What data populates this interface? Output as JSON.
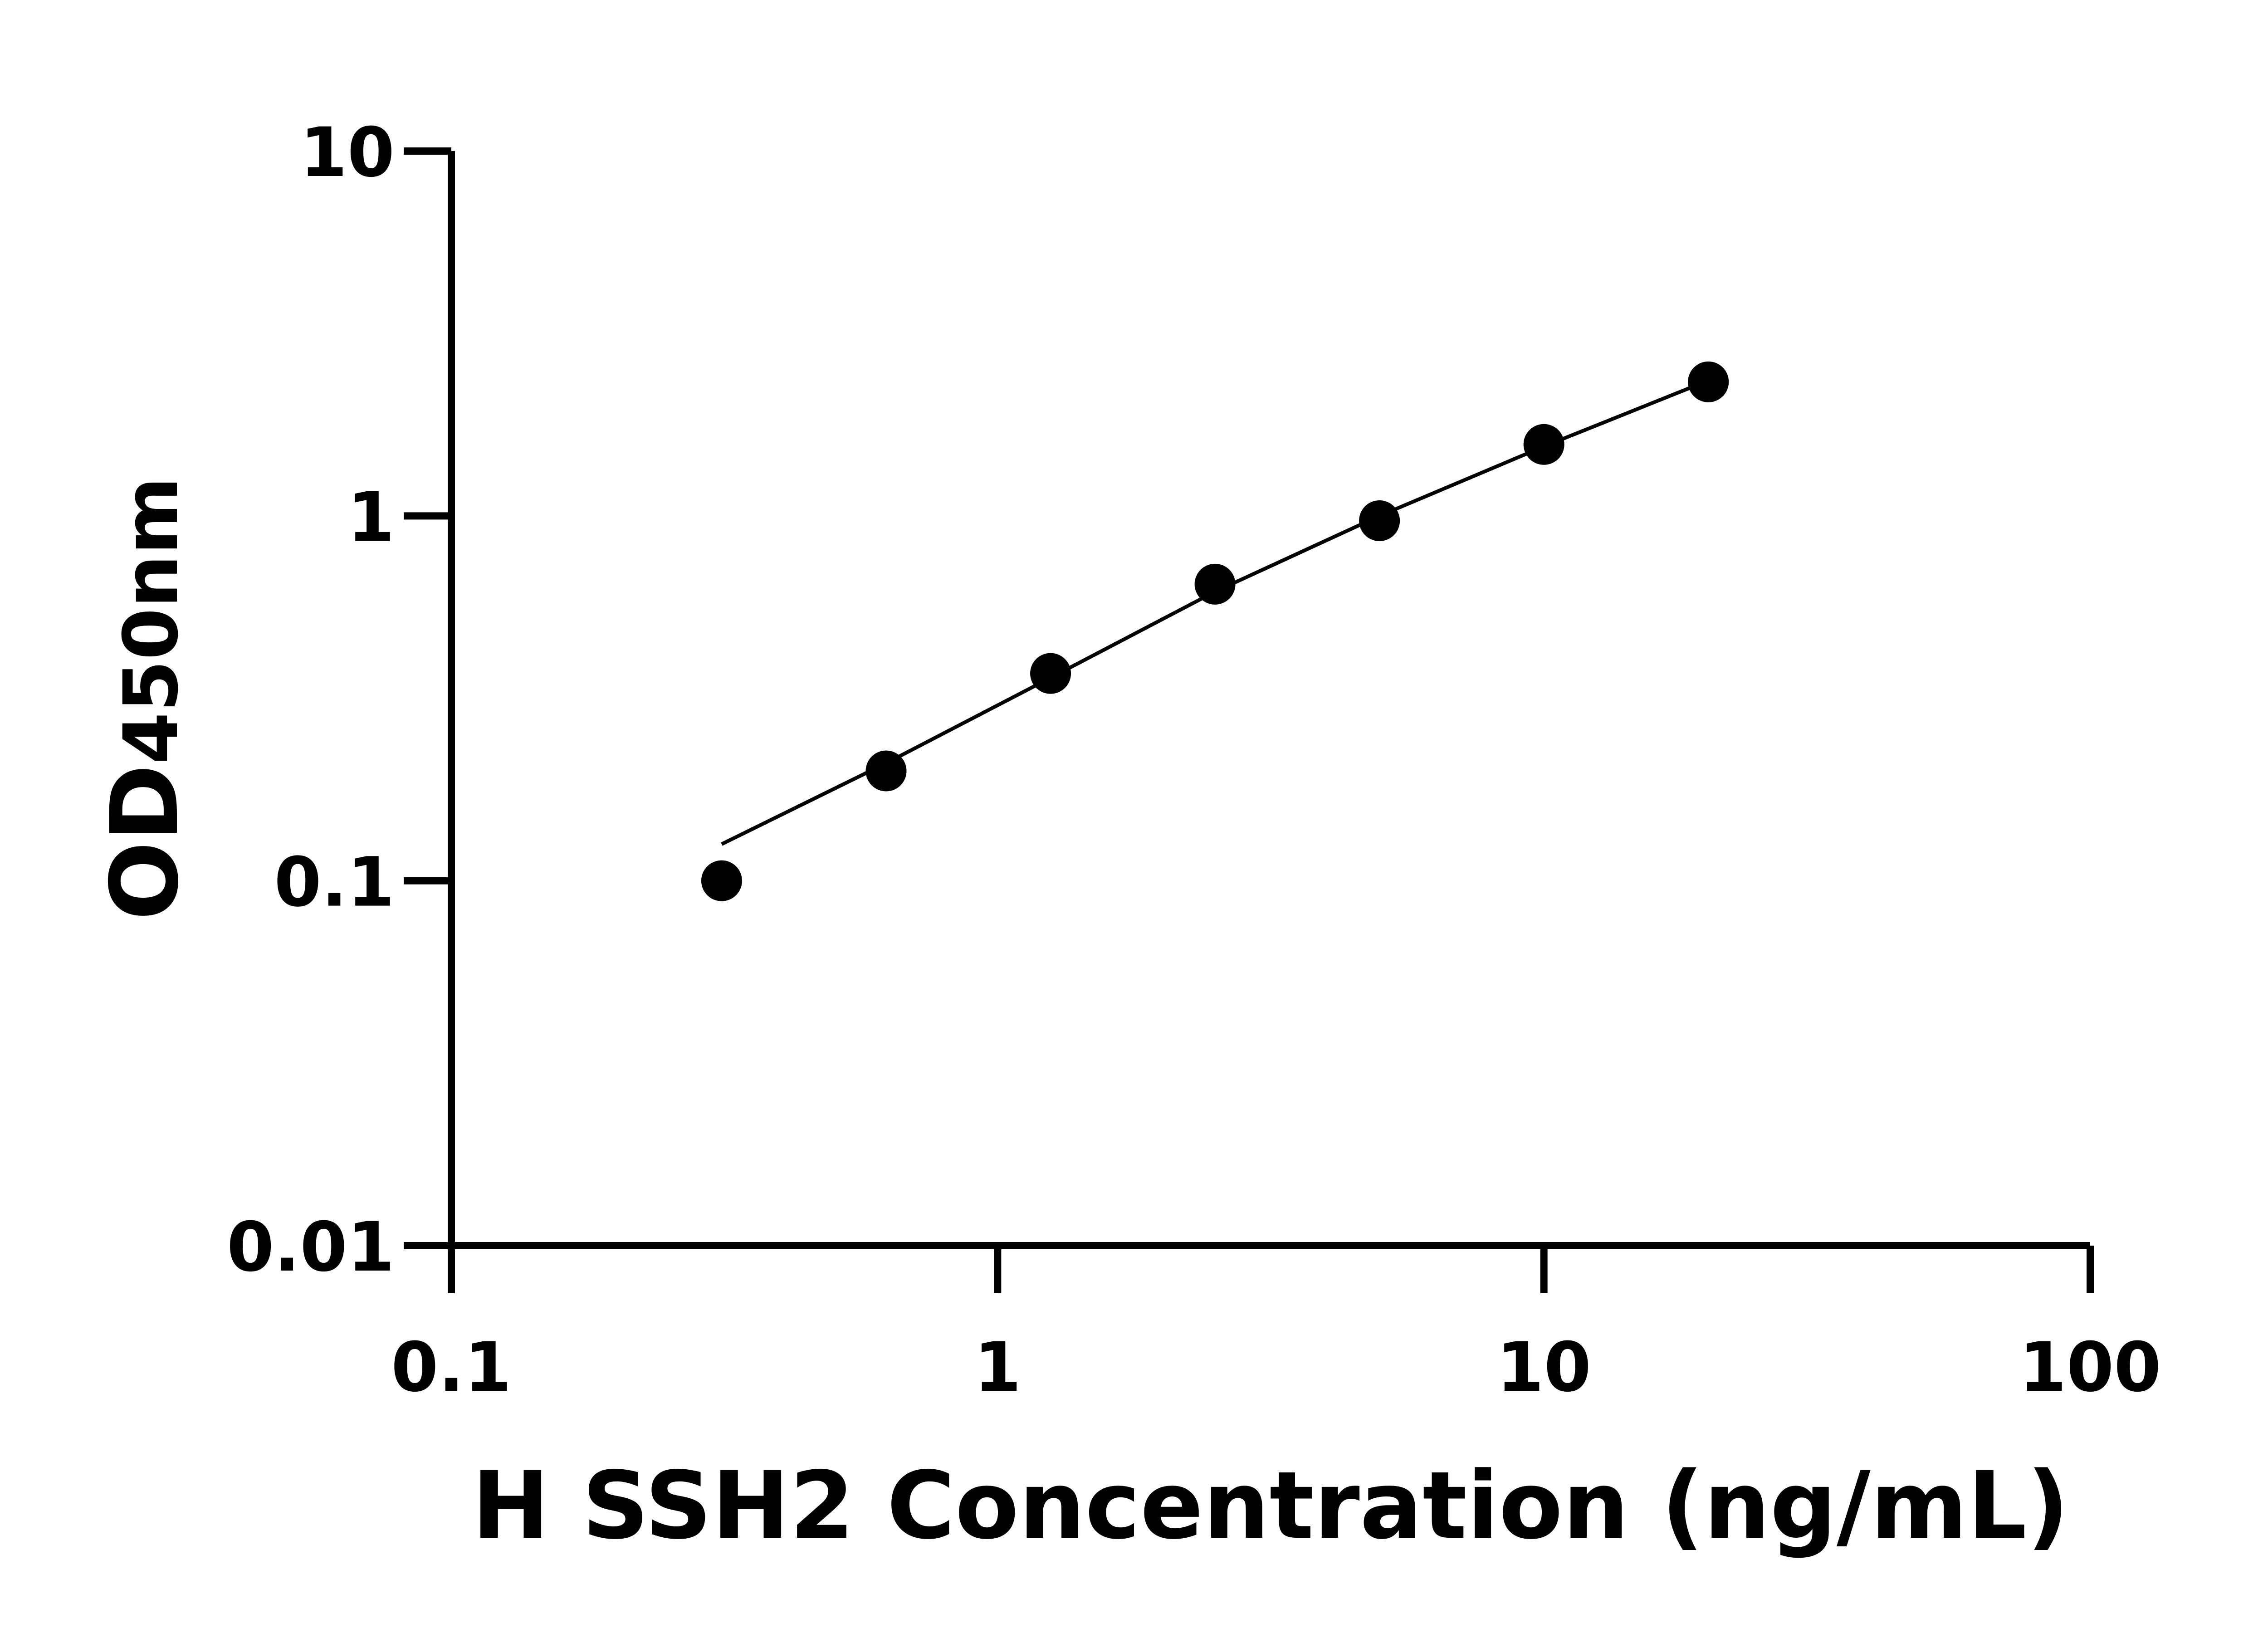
{
  "chart_data": {
    "type": "scatter",
    "title": "",
    "xlabel": "H SSH2 Concentration (ng/mL)",
    "ylabel_main": "OD",
    "ylabel_sub": "450nm",
    "x_scale": "log",
    "y_scale": "log",
    "xlim": [
      0.1,
      100
    ],
    "ylim": [
      0.01,
      10
    ],
    "x_ticks": [
      "0.1",
      "1",
      "10",
      "100"
    ],
    "y_ticks": [
      "0.01",
      "0.1",
      "1",
      "10"
    ],
    "grid": false,
    "points": {
      "x": [
        0.3125,
        0.625,
        1.25,
        2.5,
        5,
        10,
        20
      ],
      "y": [
        0.1,
        0.2,
        0.37,
        0.65,
        0.97,
        1.57,
        2.33
      ]
    },
    "fit_curve": {
      "x": [
        0.3125,
        0.625,
        1.25,
        2.5,
        5,
        10,
        20
      ],
      "y": [
        0.126,
        0.21,
        0.36,
        0.62,
        1.0,
        1.55,
        2.35
      ]
    },
    "colors": {
      "points": "#000000",
      "line": "#000000",
      "axes": "#000000"
    }
  }
}
